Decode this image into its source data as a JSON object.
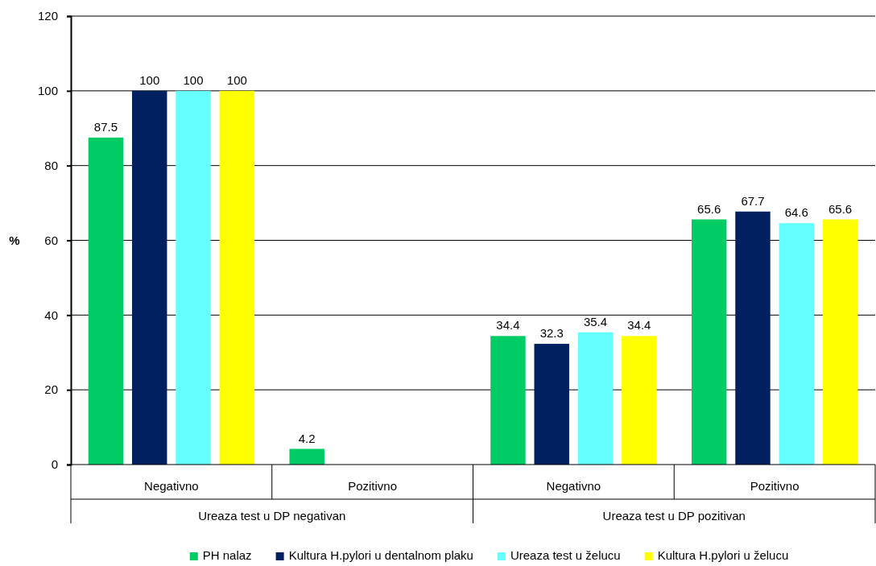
{
  "chart_data": {
    "type": "bar",
    "ylabel": "%",
    "categories": [
      "Negativno",
      "Pozitivno",
      "Negativno",
      "Pozitivno"
    ],
    "annotations": [
      "Ureaza test u DP negativan",
      "Ureaza test u DP pozitivan"
    ],
    "series": [
      {
        "name": "PH nalaz",
        "color": "#00cc66",
        "values": [
          87.5,
          4.2,
          34.4,
          65.6
        ]
      },
      {
        "name": "Kultura H.pylori u dentalnom plaku",
        "color": "#002060",
        "values": [
          100,
          null,
          32.3,
          67.7
        ]
      },
      {
        "name": "Ureaza test u želucu",
        "color": "#66ffff",
        "values": [
          100,
          null,
          35.4,
          64.6
        ]
      },
      {
        "name": "Kultura H.pylori u želucu",
        "color": "#ffff00",
        "values": [
          100,
          null,
          34.4,
          65.6
        ]
      }
    ],
    "ylim": [
      0,
      120
    ],
    "yticks": [
      0,
      20,
      40,
      60,
      80,
      100,
      120
    ],
    "grid": "y",
    "legend": "bottom",
    "data_labels": true
  }
}
